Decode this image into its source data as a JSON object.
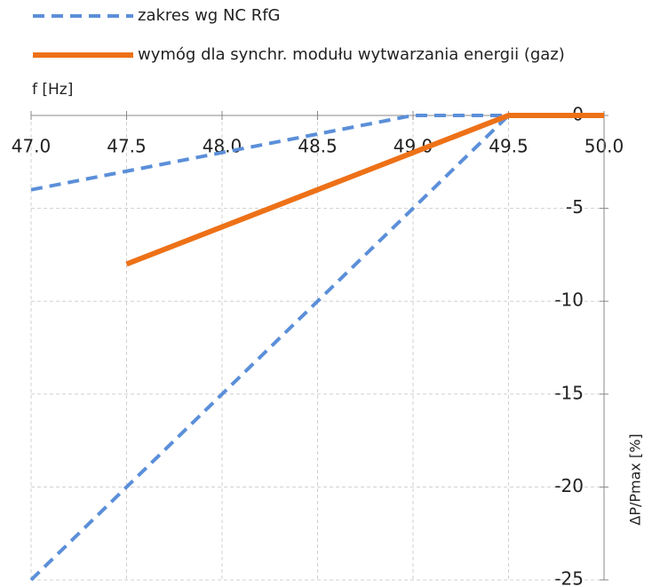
{
  "chart_data": {
    "type": "line",
    "xlabel": "f [Hz]",
    "ylabel": "ΔP/Pmax [%]",
    "series": [
      {
        "name": "zakres wg NC RfG",
        "color": "#5b8fd9",
        "dashed": true,
        "x": [
          47.0,
          49.0,
          49.5,
          null,
          47.0,
          49.5
        ],
        "values": [
          -4,
          0,
          0,
          null,
          -25,
          0
        ]
      },
      {
        "name": "wymóg dla synchr. modułu wytwarzania energii (gaz)",
        "color": "#ed7117",
        "dashed": false,
        "x": [
          47.5,
          49.5,
          50.0
        ],
        "values": [
          -8,
          0,
          0
        ]
      }
    ],
    "xlim": [
      47.0,
      50.0
    ],
    "xticks": [
      {
        "value": 47.0,
        "label": "47.0"
      },
      47.5,
      {
        "value": 48.0,
        "label": "48.0"
      },
      48.5,
      {
        "value": 49.0,
        "label": "49.0"
      },
      49.5,
      {
        "value": 50.0,
        "label": "50.0"
      }
    ],
    "ylim": [
      -25,
      0
    ],
    "yticks": [
      0,
      -5,
      -10,
      -15,
      -20,
      -25
    ],
    "grid": true
  }
}
